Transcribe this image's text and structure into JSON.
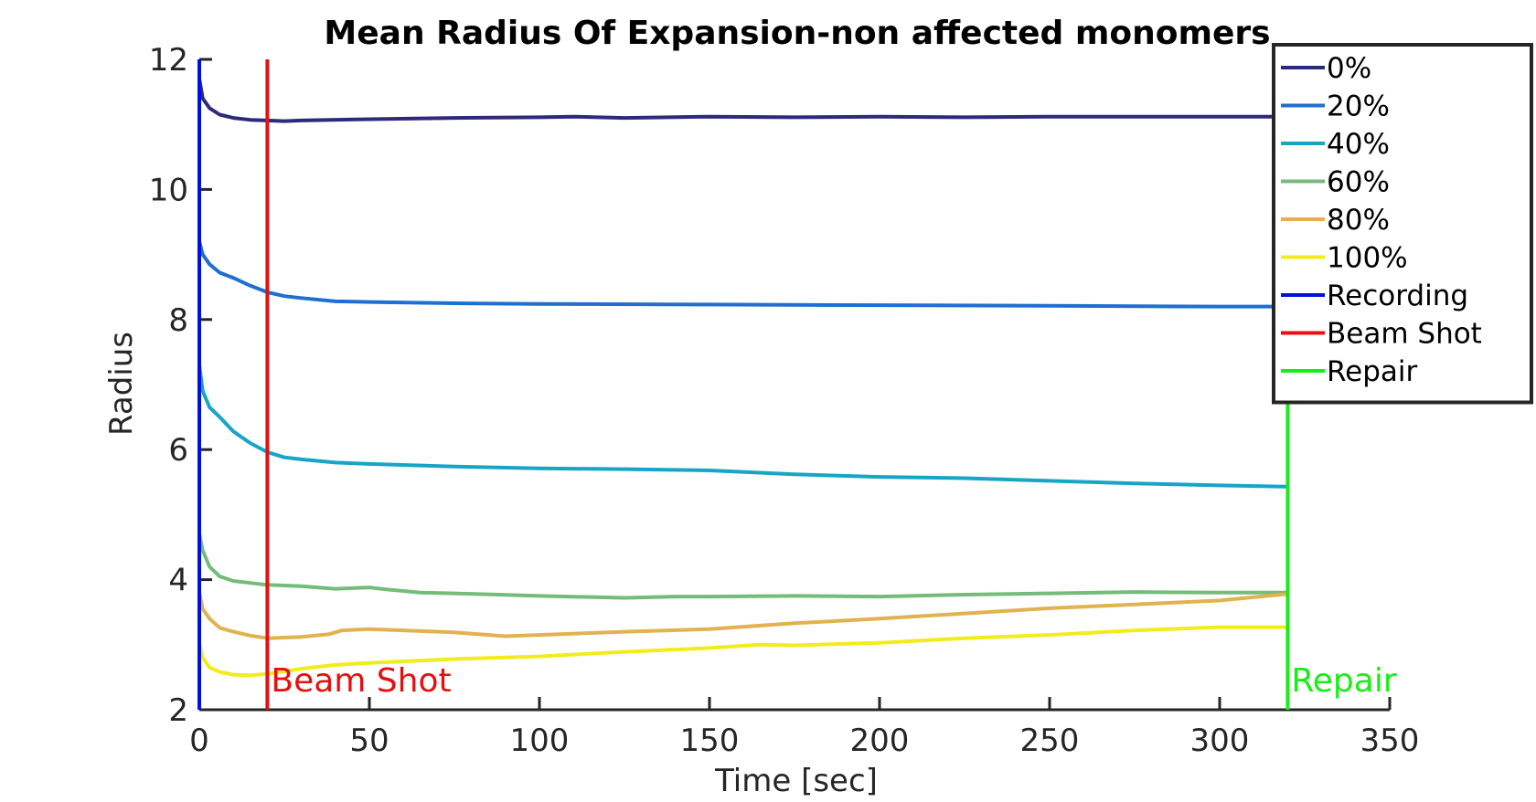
{
  "chart_data": {
    "type": "line",
    "title": "Mean Radius Of Expansion-non affected monomers",
    "xlabel": "Time [sec]",
    "ylabel": "Radius",
    "xlim": [
      0,
      350
    ],
    "ylim": [
      2,
      12
    ],
    "xticks": [
      "0",
      "50",
      "100",
      "150",
      "200",
      "250",
      "300",
      "350"
    ],
    "yticks": [
      "2",
      "4",
      "6",
      "8",
      "10",
      "12"
    ],
    "legend_position": "top-right",
    "grid": false,
    "series": [
      {
        "name": "0%",
        "color": "#2e2a7a",
        "points": [
          [
            0,
            11.7
          ],
          [
            1,
            11.4
          ],
          [
            3,
            11.25
          ],
          [
            6,
            11.15
          ],
          [
            10,
            11.1
          ],
          [
            15,
            11.07
          ],
          [
            20,
            11.06
          ],
          [
            25,
            11.05
          ],
          [
            30,
            11.06
          ],
          [
            50,
            11.08
          ],
          [
            75,
            11.1
          ],
          [
            100,
            11.11
          ],
          [
            110,
            11.12
          ],
          [
            125,
            11.1
          ],
          [
            150,
            11.12
          ],
          [
            175,
            11.11
          ],
          [
            200,
            11.12
          ],
          [
            225,
            11.11
          ],
          [
            250,
            11.12
          ],
          [
            275,
            11.12
          ],
          [
            300,
            11.12
          ],
          [
            320,
            11.12
          ]
        ]
      },
      {
        "name": "20%",
        "color": "#1f6fd1",
        "points": [
          [
            0,
            9.2
          ],
          [
            1,
            9.0
          ],
          [
            3,
            8.85
          ],
          [
            6,
            8.72
          ],
          [
            10,
            8.64
          ],
          [
            15,
            8.52
          ],
          [
            20,
            8.42
          ],
          [
            25,
            8.36
          ],
          [
            30,
            8.33
          ],
          [
            40,
            8.28
          ],
          [
            50,
            8.27
          ],
          [
            75,
            8.25
          ],
          [
            100,
            8.24
          ],
          [
            150,
            8.23
          ],
          [
            200,
            8.22
          ],
          [
            250,
            8.21
          ],
          [
            300,
            8.2
          ],
          [
            320,
            8.2
          ]
        ]
      },
      {
        "name": "40%",
        "color": "#17a5c7",
        "points": [
          [
            0,
            7.3
          ],
          [
            1,
            6.9
          ],
          [
            3,
            6.65
          ],
          [
            6,
            6.5
          ],
          [
            10,
            6.28
          ],
          [
            15,
            6.1
          ],
          [
            20,
            5.96
          ],
          [
            25,
            5.88
          ],
          [
            30,
            5.85
          ],
          [
            40,
            5.8
          ],
          [
            50,
            5.78
          ],
          [
            75,
            5.74
          ],
          [
            100,
            5.71
          ],
          [
            125,
            5.7
          ],
          [
            150,
            5.68
          ],
          [
            175,
            5.62
          ],
          [
            200,
            5.58
          ],
          [
            225,
            5.56
          ],
          [
            250,
            5.52
          ],
          [
            275,
            5.48
          ],
          [
            300,
            5.45
          ],
          [
            320,
            5.43
          ]
        ]
      },
      {
        "name": "60%",
        "color": "#75bc7a",
        "points": [
          [
            0,
            4.7
          ],
          [
            1,
            4.45
          ],
          [
            3,
            4.2
          ],
          [
            6,
            4.05
          ],
          [
            10,
            3.98
          ],
          [
            15,
            3.95
          ],
          [
            20,
            3.92
          ],
          [
            30,
            3.9
          ],
          [
            40,
            3.86
          ],
          [
            50,
            3.88
          ],
          [
            55,
            3.85
          ],
          [
            65,
            3.8
          ],
          [
            75,
            3.79
          ],
          [
            100,
            3.75
          ],
          [
            125,
            3.72
          ],
          [
            140,
            3.74
          ],
          [
            150,
            3.74
          ],
          [
            175,
            3.75
          ],
          [
            200,
            3.74
          ],
          [
            225,
            3.77
          ],
          [
            250,
            3.79
          ],
          [
            275,
            3.81
          ],
          [
            300,
            3.8
          ],
          [
            320,
            3.8
          ]
        ]
      },
      {
        "name": "80%",
        "color": "#e1b24f",
        "points": [
          [
            0,
            3.8
          ],
          [
            1,
            3.55
          ],
          [
            3,
            3.4
          ],
          [
            6,
            3.26
          ],
          [
            10,
            3.2
          ],
          [
            15,
            3.14
          ],
          [
            20,
            3.1
          ],
          [
            30,
            3.12
          ],
          [
            38,
            3.16
          ],
          [
            42,
            3.22
          ],
          [
            50,
            3.24
          ],
          [
            60,
            3.22
          ],
          [
            75,
            3.19
          ],
          [
            90,
            3.13
          ],
          [
            100,
            3.15
          ],
          [
            125,
            3.2
          ],
          [
            150,
            3.24
          ],
          [
            175,
            3.33
          ],
          [
            200,
            3.4
          ],
          [
            225,
            3.48
          ],
          [
            250,
            3.56
          ],
          [
            275,
            3.62
          ],
          [
            300,
            3.68
          ],
          [
            320,
            3.78
          ]
        ]
      },
      {
        "name": "100%",
        "color": "#f2ec1c",
        "points": [
          [
            0,
            3.0
          ],
          [
            1,
            2.8
          ],
          [
            3,
            2.65
          ],
          [
            6,
            2.58
          ],
          [
            10,
            2.54
          ],
          [
            15,
            2.53
          ],
          [
            20,
            2.55
          ],
          [
            30,
            2.63
          ],
          [
            40,
            2.69
          ],
          [
            50,
            2.72
          ],
          [
            75,
            2.78
          ],
          [
            100,
            2.82
          ],
          [
            125,
            2.89
          ],
          [
            150,
            2.95
          ],
          [
            165,
            3.0
          ],
          [
            175,
            2.99
          ],
          [
            200,
            3.03
          ],
          [
            225,
            3.1
          ],
          [
            250,
            3.15
          ],
          [
            275,
            3.22
          ],
          [
            300,
            3.27
          ],
          [
            320,
            3.27
          ]
        ]
      }
    ],
    "markers": [
      {
        "name": "Recording",
        "x": 0,
        "color": "#0010e0",
        "label": ""
      },
      {
        "name": "Beam Shot",
        "x": 20,
        "color": "#e51010",
        "label": "Beam Shot"
      },
      {
        "name": "Repair",
        "x": 320,
        "color": "#14f014",
        "label": "Repair"
      }
    ]
  }
}
